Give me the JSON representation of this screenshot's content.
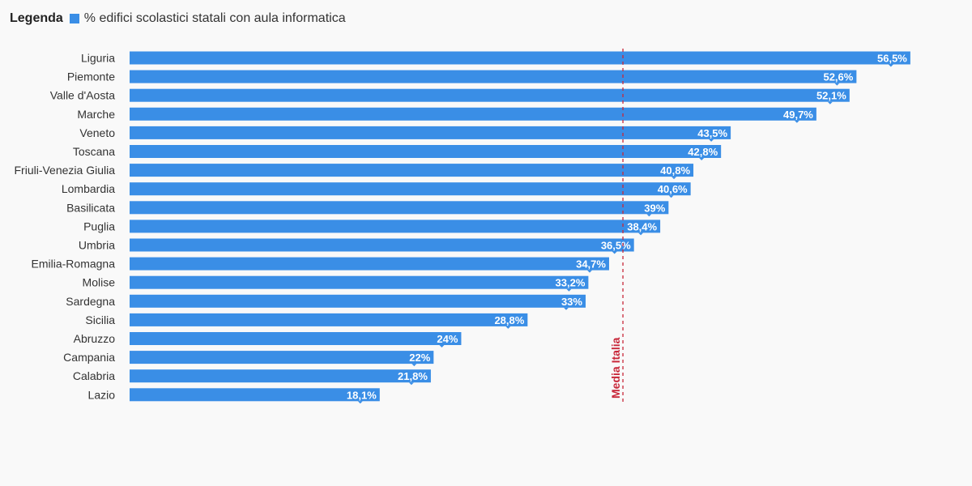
{
  "legend": {
    "title": "Legenda",
    "series_label": "% edifici scolastici statali con aula informatica"
  },
  "colors": {
    "bar": "#3a8ee6",
    "average_line": "#c8283a"
  },
  "chart_data": {
    "type": "bar",
    "orientation": "horizontal",
    "categories": [
      "Liguria",
      "Piemonte",
      "Valle d'Aosta",
      "Marche",
      "Veneto",
      "Toscana",
      "Friuli-Venezia Giulia",
      "Lombardia",
      "Basilicata",
      "Puglia",
      "Umbria",
      "Emilia-Romagna",
      "Molise",
      "Sardegna",
      "Sicilia",
      "Abruzzo",
      "Campania",
      "Calabria",
      "Lazio"
    ],
    "values": [
      56.5,
      52.6,
      52.1,
      49.7,
      43.5,
      42.8,
      40.8,
      40.6,
      39,
      38.4,
      36.5,
      34.7,
      33.2,
      33,
      28.8,
      24,
      22,
      21.8,
      18.1
    ],
    "value_labels": [
      "56,5%",
      "52,6%",
      "52,1%",
      "49,7%",
      "43,5%",
      "42,8%",
      "40,8%",
      "40,6%",
      "39%",
      "38,4%",
      "36,5%",
      "34,7%",
      "33,2%",
      "33%",
      "28,8%",
      "24%",
      "22%",
      "21,8%",
      "18,1%"
    ],
    "series": [
      {
        "name": "% edifici scolastici statali con aula informatica"
      }
    ],
    "reference_line": {
      "label": "Media Italia",
      "value": 35.7
    },
    "xlim": [
      0,
      60
    ],
    "grid": false,
    "legend_position": "top-left"
  }
}
